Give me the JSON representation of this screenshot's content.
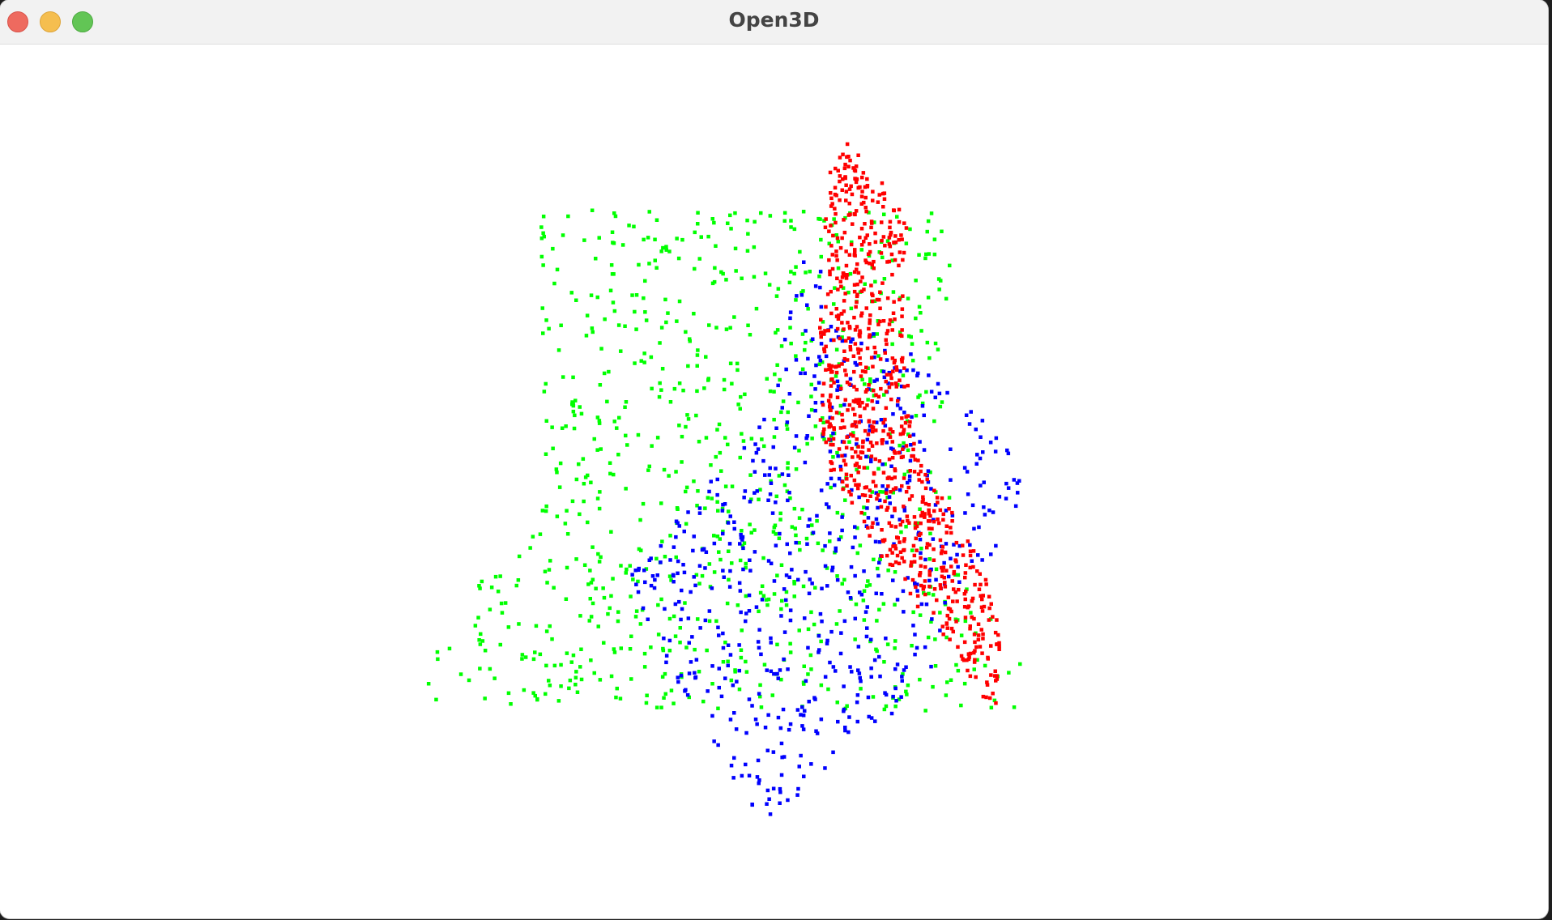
{
  "window": {
    "title": "Open3D"
  },
  "controls": {
    "close": "close-button",
    "minimize": "minimize-button",
    "maximize": "maximize-button"
  },
  "point_cloud": {
    "description_colors": {
      "green": "#00ff00",
      "blue": "#0000ff",
      "red": "#ff0000"
    },
    "background": "#ffffff"
  }
}
